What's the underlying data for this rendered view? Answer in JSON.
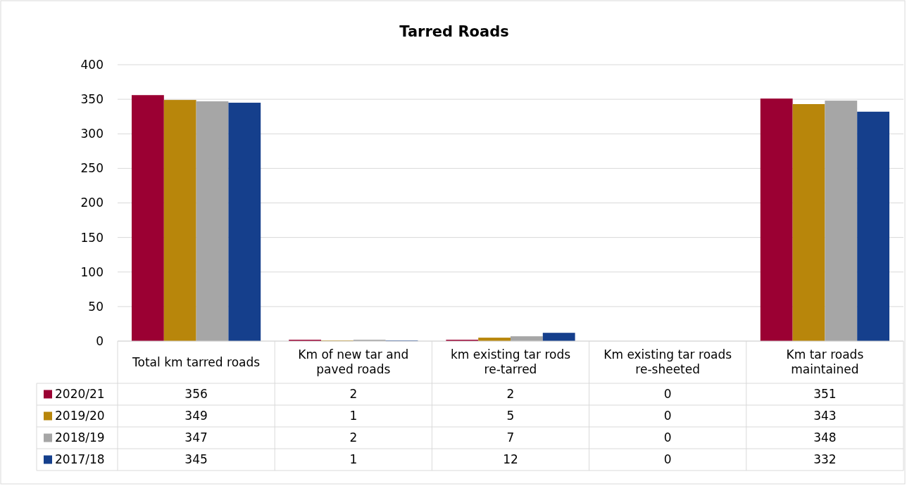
{
  "chart_data": {
    "type": "bar",
    "title": "Tarred Roads",
    "categories": [
      "Total km tarred roads",
      "Km of new tar and paved roads",
      "km existing tar rods re-tarred",
      "Km existing tar roads re-sheeted",
      "Km tar roads maintained"
    ],
    "series": [
      {
        "name": "2020/21",
        "color": "#9b0033",
        "values": [
          356,
          2,
          2,
          0,
          351
        ]
      },
      {
        "name": "2019/20",
        "color": "#b8860b",
        "values": [
          349,
          1,
          5,
          0,
          343
        ]
      },
      {
        "name": "2018/19",
        "color": "#a6a6a6",
        "values": [
          347,
          2,
          7,
          0,
          348
        ]
      },
      {
        "name": "2017/18",
        "color": "#153f8c",
        "values": [
          345,
          1,
          12,
          0,
          332
        ]
      }
    ],
    "ylim": [
      0,
      400
    ],
    "yticks": [
      0,
      50,
      100,
      150,
      200,
      250,
      300,
      350,
      400
    ],
    "grid": "y",
    "data_labels": true,
    "legend": "left"
  }
}
